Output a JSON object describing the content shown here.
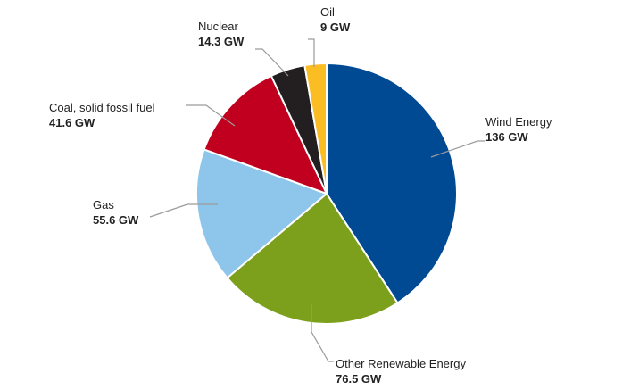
{
  "chart_data": {
    "type": "pie",
    "unit": "GW",
    "slices": [
      {
        "name": "Wind Energy",
        "value": 136,
        "value_label": "136 GW",
        "color": "#004a94"
      },
      {
        "name": "Other Renewable Energy",
        "value": 76.5,
        "value_label": "76.5 GW",
        "color": "#7da01c"
      },
      {
        "name": "Gas",
        "value": 55.6,
        "value_label": "55.6 GW",
        "color": "#8ec5ea"
      },
      {
        "name": "Coal, solid fossil fuel",
        "value": 41.6,
        "value_label": "41.6 GW",
        "color": "#c1001f"
      },
      {
        "name": "Nuclear",
        "value": 14.3,
        "value_label": "14.3 GW",
        "color": "#231f20"
      },
      {
        "name": "Oil",
        "value": 9,
        "value_label": "9 GW",
        "color": "#fbbd24"
      }
    ],
    "start_angle": "12 o'clock",
    "direction": "clockwise"
  }
}
